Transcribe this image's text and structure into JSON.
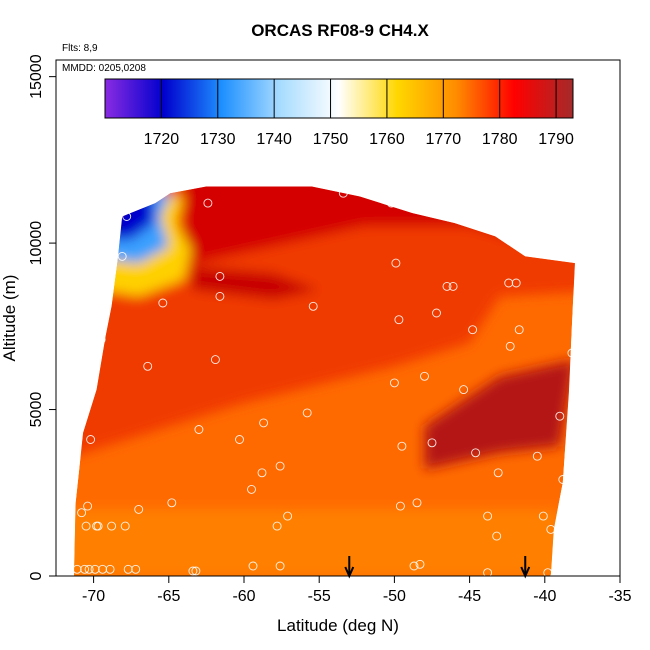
{
  "chart_data": {
    "type": "heatmap",
    "title": "ORCAS RF08-9 CH4.X",
    "xlabel": "Latitude (deg N)",
    "ylabel": "Altitude (m)",
    "xlim": [
      -72.5,
      -35
    ],
    "ylim": [
      0,
      15500
    ],
    "x_ticks": [
      -70,
      -65,
      -60,
      -55,
      -50,
      -45,
      -40,
      -35
    ],
    "y_ticks": [
      0,
      5000,
      10000,
      15000
    ],
    "notes": [
      "Flts: 8,9",
      "MMDD: 0205,0208"
    ],
    "colorbar": {
      "range": [
        1710,
        1793
      ],
      "ticks": [
        1720,
        1730,
        1740,
        1750,
        1760,
        1770,
        1780,
        1790
      ],
      "colors": [
        "#8a2be2",
        "#0000cd",
        "#1e90ff",
        "#a8dcff",
        "#ffffff",
        "#ffd700",
        "#ff8c00",
        "#ff0000",
        "#a52a2a"
      ]
    },
    "outline": [
      [
        -71.3,
        0
      ],
      [
        -71.2,
        2200
      ],
      [
        -70.7,
        4300
      ],
      [
        -69.8,
        5600
      ],
      [
        -69.2,
        7200
      ],
      [
        -68.8,
        8100
      ],
      [
        -68.4,
        9500
      ],
      [
        -68.1,
        10800
      ],
      [
        -65.9,
        11200
      ],
      [
        -64.9,
        11500
      ],
      [
        -62.5,
        11700
      ],
      [
        -55.5,
        11700
      ],
      [
        -52.3,
        11400
      ],
      [
        -48.8,
        10900
      ],
      [
        -46.0,
        10600
      ],
      [
        -43.3,
        10200
      ],
      [
        -41.3,
        9600
      ],
      [
        -38.0,
        9400
      ],
      [
        -38.2,
        7500
      ],
      [
        -38.4,
        5500
      ],
      [
        -38.8,
        2800
      ],
      [
        -39.4,
        1400
      ],
      [
        -39.6,
        0
      ]
    ],
    "points": [
      [
        -71.1,
        200
      ],
      [
        -70.6,
        200
      ],
      [
        -70.3,
        200
      ],
      [
        -69.9,
        200
      ],
      [
        -69.4,
        200
      ],
      [
        -68.9,
        200
      ],
      [
        -67.7,
        200
      ],
      [
        -67.2,
        200
      ],
      [
        -63.4,
        150
      ],
      [
        -63.2,
        150
      ],
      [
        -59.4,
        300
      ],
      [
        -57.6,
        300
      ],
      [
        -48.7,
        300
      ],
      [
        -48.3,
        350
      ],
      [
        -43.8,
        100
      ],
      [
        -39.8,
        100
      ],
      [
        -70.8,
        1900
      ],
      [
        -70.4,
        2100
      ],
      [
        -70.5,
        1500
      ],
      [
        -69.8,
        1500
      ],
      [
        -69.7,
        1500
      ],
      [
        -68.8,
        1500
      ],
      [
        -67.9,
        1500
      ],
      [
        -67.0,
        2000
      ],
      [
        -64.8,
        2200
      ],
      [
        -59.5,
        2600
      ],
      [
        -58.8,
        3100
      ],
      [
        -57.6,
        3300
      ],
      [
        -57.8,
        1500
      ],
      [
        -57.1,
        1800
      ],
      [
        -49.6,
        2100
      ],
      [
        -48.5,
        2200
      ],
      [
        -43.8,
        1800
      ],
      [
        -43.2,
        1200
      ],
      [
        -40.1,
        1800
      ],
      [
        -39.6,
        1400
      ],
      [
        -38.8,
        2900
      ],
      [
        -70.2,
        4100
      ],
      [
        -63.0,
        4400
      ],
      [
        -60.3,
        4100
      ],
      [
        -58.7,
        4600
      ],
      [
        -55.8,
        4900
      ],
      [
        -49.5,
        3900
      ],
      [
        -47.5,
        4000
      ],
      [
        -44.6,
        3700
      ],
      [
        -43.1,
        3100
      ],
      [
        -40.5,
        3600
      ],
      [
        -69.5,
        7100
      ],
      [
        -66.4,
        6300
      ],
      [
        -61.9,
        6500
      ],
      [
        -50.0,
        5800
      ],
      [
        -48.0,
        6000
      ],
      [
        -45.4,
        5600
      ],
      [
        -42.3,
        6900
      ],
      [
        -39.0,
        4800
      ],
      [
        -38.2,
        6700
      ],
      [
        -65.4,
        8200
      ],
      [
        -61.6,
        8400
      ],
      [
        -55.4,
        8100
      ],
      [
        -49.7,
        7700
      ],
      [
        -47.2,
        7900
      ],
      [
        -44.8,
        7400
      ],
      [
        -41.7,
        7400
      ],
      [
        -68.1,
        9600
      ],
      [
        -67.8,
        10800
      ],
      [
        -62.4,
        11200
      ],
      [
        -61.6,
        9000
      ],
      [
        -53.4,
        11500
      ],
      [
        -50.2,
        11200
      ],
      [
        -49.9,
        9400
      ],
      [
        -46.5,
        8700
      ],
      [
        -46.1,
        8700
      ],
      [
        -42.4,
        8800
      ],
      [
        -41.9,
        8800
      ]
    ],
    "arrows": [
      -53.0,
      -41.3
    ]
  }
}
